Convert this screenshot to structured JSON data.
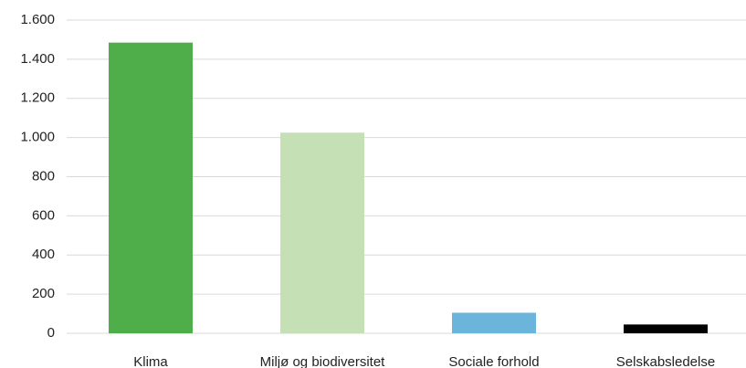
{
  "chart_data": {
    "type": "bar",
    "categories": [
      "Klima",
      "Miljø og biodiversitet",
      "Sociale forhold",
      "Selskabsledelse"
    ],
    "values": [
      1485,
      1025,
      105,
      45
    ],
    "colors": [
      "#4fae4a",
      "#c5e0b4",
      "#6bb4dc",
      "#000000"
    ],
    "ylim": [
      0,
      1600
    ],
    "yticks": [
      0,
      200,
      400,
      600,
      800,
      {
        "value": 1000,
        "label": "1.000"
      },
      {
        "value": 1200,
        "label": "1.200"
      },
      {
        "value": 1400,
        "label": "1.400"
      },
      {
        "value": 1600,
        "label": "1.600"
      }
    ],
    "grid": true
  }
}
